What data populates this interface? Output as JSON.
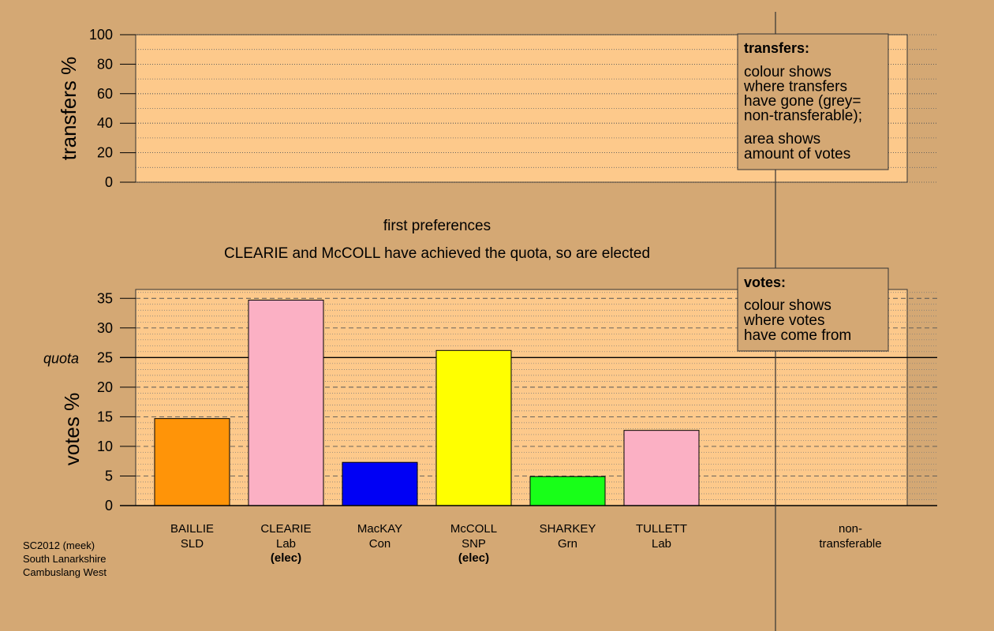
{
  "chart_data": [
    {
      "type": "bar",
      "panel": "transfers",
      "ylabel": "transfers %",
      "ylim": [
        0,
        100
      ],
      "yticks": [
        0,
        20,
        40,
        60,
        80,
        100
      ],
      "grid": "dotted",
      "series": [],
      "legend_box": {
        "title": "transfers:",
        "lines1": [
          "colour shows",
          "where transfers",
          "have gone (grey=",
          "non-transferable);"
        ],
        "lines2": [
          "area shows",
          "amount of votes"
        ]
      }
    },
    {
      "type": "bar",
      "panel": "votes",
      "title": "first preferences",
      "subtitle": "CLEARIE and McCOLL have achieved the quota, so are elected",
      "ylabel": "votes %",
      "ylim": [
        0,
        36.5
      ],
      "yticks": [
        0,
        5,
        10,
        15,
        20,
        25,
        30,
        35
      ],
      "quota": 25,
      "quota_label": "quota",
      "grid": "dashed",
      "candidates": [
        {
          "name": "BAILLIE",
          "party": "SLD",
          "elected": "",
          "value": 14.7,
          "color": "#ff9408"
        },
        {
          "name": "CLEARIE",
          "party": "Lab",
          "elected": "(elec)",
          "value": 34.7,
          "color": "#fbb0c4"
        },
        {
          "name": "MacKAY",
          "party": "Con",
          "elected": "",
          "value": 7.3,
          "color": "#0000f5"
        },
        {
          "name": "McCOLL",
          "party": "SNP",
          "elected": "(elec)",
          "value": 26.2,
          "color": "#ffff00"
        },
        {
          "name": "SHARKEY",
          "party": "Grn",
          "elected": "",
          "value": 4.9,
          "color": "#18ff18"
        },
        {
          "name": "TULLETT",
          "party": "Lab",
          "elected": "",
          "value": 12.7,
          "color": "#fbb0c4"
        }
      ],
      "non_transferable": {
        "line1": "non-",
        "line2": "transferable"
      },
      "legend_box": {
        "title": "votes:",
        "lines": [
          "colour shows",
          "where votes",
          "have come from"
        ]
      }
    }
  ],
  "footer": [
    "SC2012 (meek)",
    "South Lanarkshire",
    "Cambuslang West"
  ],
  "colors": {
    "background": "#d4a874",
    "panel": "#fdc98b",
    "legend_box": "#d4a874"
  }
}
